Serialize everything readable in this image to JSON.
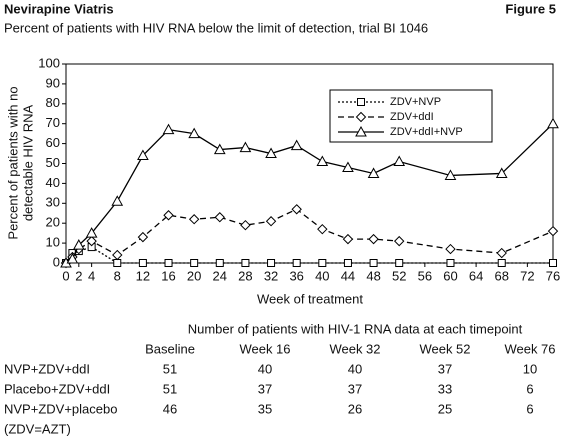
{
  "header": {
    "title": "Nevirapine Viatris",
    "figure": "Figure 5",
    "subtitle": "Percent of patients with HIV RNA below the limit of detection, trial BI 1046"
  },
  "chart_data": {
    "type": "line",
    "x_label": "Week of treatment",
    "y_label": [
      "Percent of patients with no",
      "detectable HIV RNA"
    ],
    "x": [
      0,
      1,
      2,
      4,
      8,
      12,
      16,
      20,
      24,
      28,
      32,
      36,
      40,
      44,
      48,
      52,
      60,
      68,
      76
    ],
    "series": [
      {
        "name": "ZDV+NVP",
        "color": "#000000",
        "dash": "dotted",
        "marker": "square",
        "values": [
          0,
          5,
          6,
          8,
          0,
          0,
          0,
          0,
          0,
          0,
          0,
          0,
          0,
          0,
          0,
          0,
          0,
          0,
          0
        ]
      },
      {
        "name": "ZDV+ddI",
        "color": "#000000",
        "dash": "dashed",
        "marker": "diamond",
        "values": [
          0,
          3,
          7,
          11,
          4,
          13,
          24,
          22,
          23,
          19,
          21,
          27,
          17,
          12,
          12,
          11,
          7,
          5,
          16
        ]
      },
      {
        "name": "ZDV+ddI+NVP",
        "color": "#000000",
        "dash": "solid",
        "marker": "triangle",
        "values": [
          0,
          2,
          9,
          15,
          31,
          54,
          67,
          65,
          57,
          58,
          55,
          59,
          51,
          48,
          45,
          51,
          44,
          45,
          70
        ]
      }
    ],
    "xlim": [
      0,
      76
    ],
    "xticks": [
      0,
      2,
      4,
      8,
      12,
      16,
      20,
      24,
      28,
      32,
      36,
      40,
      44,
      48,
      52,
      56,
      60,
      64,
      68,
      72,
      76
    ],
    "ylim": [
      0,
      100
    ],
    "yticks": [
      0,
      10,
      20,
      30,
      40,
      50,
      60,
      70,
      80,
      90,
      100
    ],
    "grid": false,
    "legend": "top-right"
  },
  "table": {
    "title": "Number of patients with HIV-1 RNA data at each timepoint",
    "columns": [
      "Baseline",
      "Week 16",
      "Week 32",
      "Week 52",
      "Week 76"
    ],
    "rows": [
      {
        "label": "NVP+ZDV+ddI",
        "values": [
          51,
          40,
          40,
          37,
          10
        ]
      },
      {
        "label": "Placebo+ZDV+ddI",
        "values": [
          51,
          37,
          37,
          33,
          6
        ]
      },
      {
        "label": "NVP+ZDV+placebo",
        "values": [
          46,
          35,
          26,
          25,
          6
        ]
      }
    ],
    "note": "(ZDV=AZT)"
  }
}
